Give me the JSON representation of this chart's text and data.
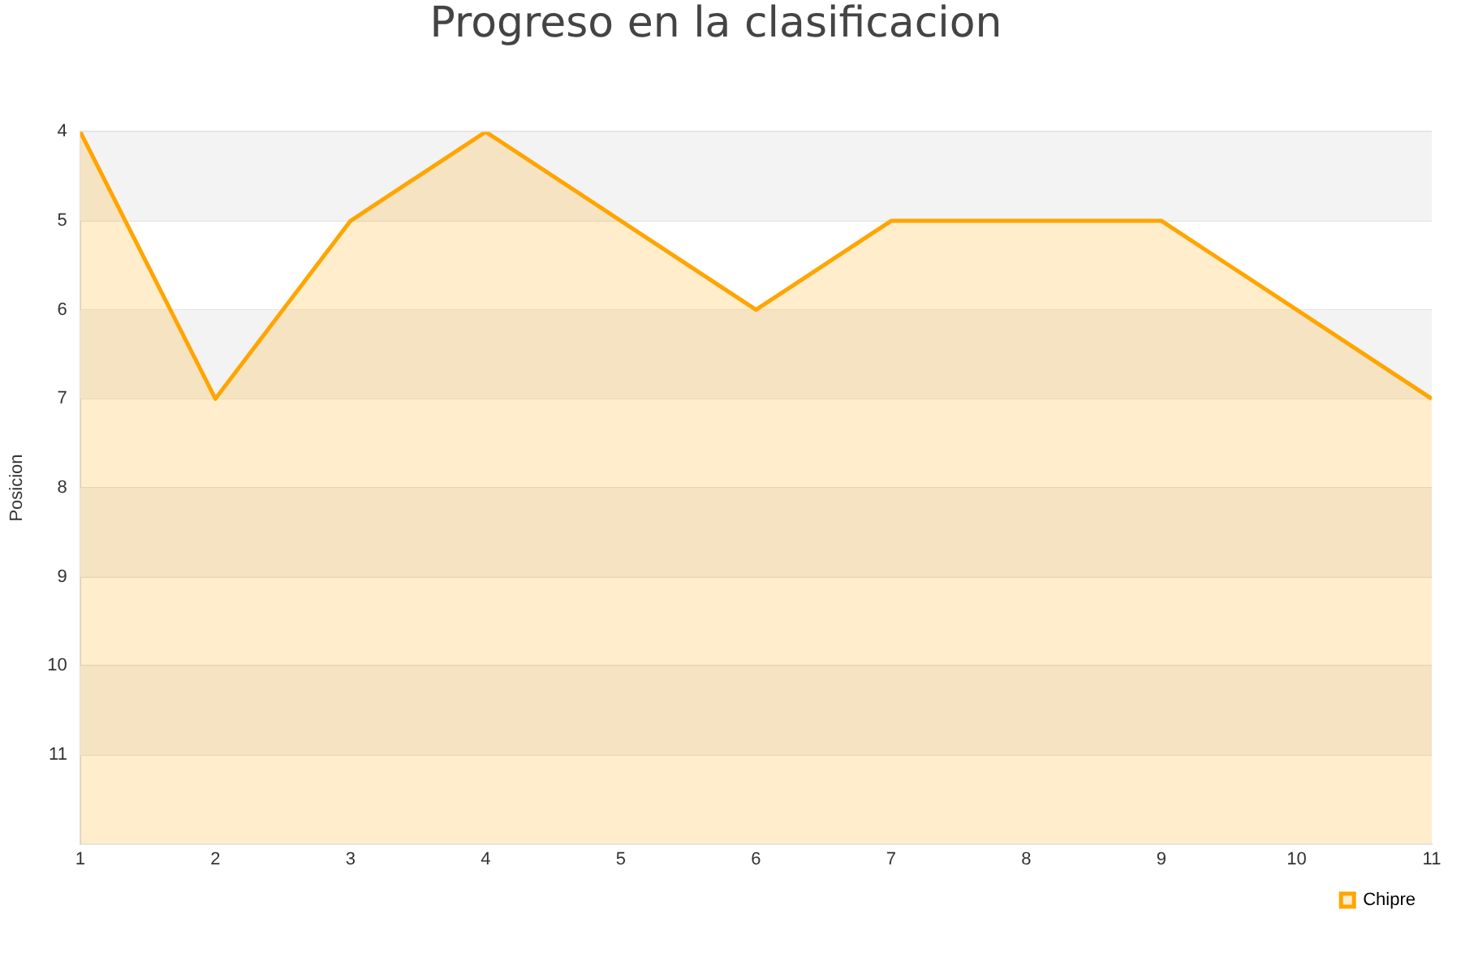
{
  "chart_data": {
    "type": "area",
    "title": "Progreso en la clasificacion",
    "ylabel": "Posicion",
    "x": [
      1,
      2,
      3,
      4,
      5,
      6,
      7,
      8,
      9,
      10,
      11
    ],
    "series": [
      {
        "name": "Chipre",
        "color": "#ffa500",
        "values": [
          4,
          7,
          5,
          4,
          5,
          6,
          5,
          5,
          5,
          6,
          7
        ]
      }
    ],
    "xlim": [
      1,
      11
    ],
    "xticks": [
      1,
      2,
      3,
      4,
      5,
      6,
      7,
      8,
      9,
      10,
      11
    ],
    "ylim": [
      12,
      4
    ],
    "yticks": [
      4,
      5,
      6,
      7,
      8,
      9,
      10,
      11
    ],
    "grid": "y",
    "legend": "bottom right",
    "marker": "none",
    "line_style": "solid"
  }
}
